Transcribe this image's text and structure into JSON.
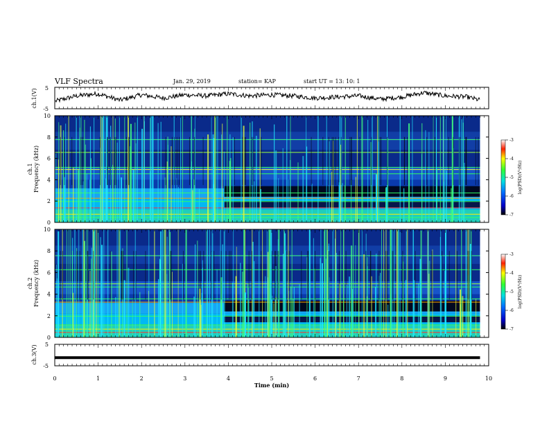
{
  "header": {
    "title": "VLF Spectra",
    "date": "Jan. 29, 2019",
    "station": "station= KAP",
    "start": "start UT =  13: 10: 1"
  },
  "chart_data": [
    {
      "type": "line",
      "panel": "ch1-waveform",
      "ylabel": "ch.1(V)",
      "ylim": [
        -5,
        5
      ],
      "yticks": [
        "5",
        "-5"
      ],
      "xlim": [
        0,
        10
      ],
      "note_series_shape": "noisy trace around 0 V",
      "x": [
        0,
        0.5,
        1,
        1.5,
        2,
        2.5,
        3,
        3.5,
        4,
        4.5,
        5,
        5.5,
        6,
        6.5,
        7,
        7.5,
        8,
        8.5,
        9,
        9.5,
        9.8
      ],
      "values": [
        -1.5,
        1,
        2,
        -1,
        1.5,
        0,
        1.5,
        1,
        2,
        1,
        1.5,
        1,
        0,
        0.5,
        1,
        -0.5,
        0.5,
        2.5,
        1,
        0.5,
        -1
      ]
    },
    {
      "type": "heatmap",
      "panel": "ch1-spectrogram",
      "ylabel_line1": "ch.1",
      "ylabel_line2": "Frequency (kHz)",
      "ylim": [
        0,
        10
      ],
      "yticks": [
        "0",
        "2",
        "4",
        "6",
        "8",
        "10"
      ],
      "xlim": [
        0,
        10
      ],
      "colorbar": {
        "label": "log(PSD)(V²/Hz)",
        "range": [
          -7,
          -3
        ],
        "ticks": [
          "-3",
          "-4",
          "-5",
          "-6",
          "-7"
        ]
      }
    },
    {
      "type": "heatmap",
      "panel": "ch2-spectrogram",
      "ylabel_line1": "ch.2",
      "ylabel_line2": "Frequency (kHz)",
      "ylim": [
        0,
        10
      ],
      "yticks": [
        "0",
        "2",
        "4",
        "6",
        "8",
        "10"
      ],
      "xlim": [
        0,
        10
      ],
      "colorbar": {
        "label": "log(PSD)(V²/Hz)",
        "range": [
          -7,
          -3
        ],
        "ticks": [
          "-3",
          "-4",
          "-5",
          "-6",
          "-7"
        ]
      }
    },
    {
      "type": "line",
      "panel": "ch3-waveform",
      "ylabel": "ch.3(V)",
      "ylim": [
        -5,
        5
      ],
      "yticks": [
        "5",
        "-5"
      ],
      "xlim": [
        0,
        9.8
      ],
      "x": [
        0,
        9.8
      ],
      "values": [
        -1.2,
        -1.2
      ]
    }
  ],
  "xaxis": {
    "label": "Time (min)",
    "ticks": [
      "0",
      "1",
      "2",
      "3",
      "4",
      "5",
      "6",
      "7",
      "8",
      "9",
      "10"
    ]
  }
}
